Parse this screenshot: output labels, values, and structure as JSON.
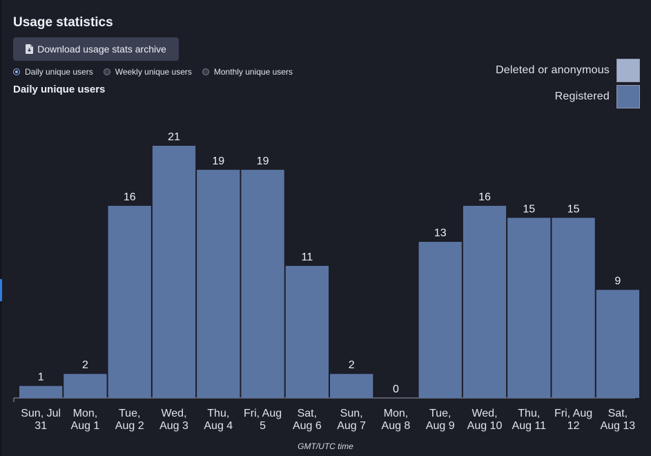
{
  "page": {
    "title": "Usage statistics",
    "download_label": "Download usage stats archive",
    "radio_options": [
      {
        "label": "Daily unique users",
        "checked": true
      },
      {
        "label": "Weekly unique users",
        "checked": false
      },
      {
        "label": "Monthly unique users",
        "checked": false
      }
    ],
    "chart_title": "Daily unique users"
  },
  "colors": {
    "registered": "#5b75a3",
    "deleted": "#a3b1cc",
    "axis": "#9aa0ad"
  },
  "chart_data": {
    "type": "bar",
    "title": "Daily unique users",
    "xlabel": "GMT/UTC time",
    "ylabel": "",
    "ylim": [
      0,
      21
    ],
    "grid": false,
    "legend": {
      "position": "top-right",
      "entries": [
        "Deleted or anonymous",
        "Registered"
      ]
    },
    "categories": [
      [
        "Sun, Jul",
        "31"
      ],
      [
        "Mon,",
        "Aug 1"
      ],
      [
        "Tue,",
        "Aug 2"
      ],
      [
        "Wed,",
        "Aug 3"
      ],
      [
        "Thu,",
        "Aug 4"
      ],
      [
        "Fri, Aug",
        "5"
      ],
      [
        "Sat,",
        "Aug 6"
      ],
      [
        "Sun,",
        "Aug 7"
      ],
      [
        "Mon,",
        "Aug 8"
      ],
      [
        "Tue,",
        "Aug 9"
      ],
      [
        "Wed,",
        "Aug 10"
      ],
      [
        "Thu,",
        "Aug 11"
      ],
      [
        "Fri, Aug",
        "12"
      ],
      [
        "Sat,",
        "Aug 13"
      ]
    ],
    "series": [
      {
        "name": "Deleted or anonymous",
        "values": [
          0,
          0,
          0,
          0,
          0,
          0,
          0,
          0,
          0,
          0,
          0,
          0,
          0,
          0
        ]
      },
      {
        "name": "Registered",
        "values": [
          1,
          2,
          16,
          21,
          19,
          19,
          11,
          2,
          0,
          13,
          16,
          15,
          15,
          9
        ]
      }
    ],
    "totals": [
      1,
      2,
      16,
      21,
      19,
      19,
      11,
      2,
      0,
      13,
      16,
      15,
      15,
      9
    ]
  }
}
